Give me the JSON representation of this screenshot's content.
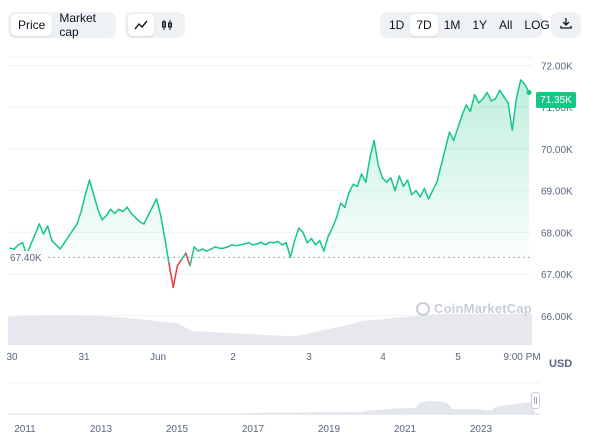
{
  "tabs": {
    "price": "Price",
    "market_cap": "Market cap"
  },
  "chart_style_icons": [
    "line-chart-icon",
    "candlestick-icon"
  ],
  "ranges": [
    "1D",
    "7D",
    "1M",
    "1Y",
    "All",
    "LOG"
  ],
  "active_range": "7D",
  "download_icon": "download-icon",
  "current_price_label": "71.35K",
  "reference_price_label": "67.40K",
  "currency_label": "USD",
  "watermark": "CoinMarketCap",
  "colors": {
    "up": "#16c784",
    "down": "#ea3943",
    "volume": "#e3e6eb",
    "grid": "#eff2f5",
    "axis_text": "#58667e"
  },
  "chart_data": {
    "type": "line",
    "title": "",
    "series": [
      {
        "values": [
          67.62,
          67.6,
          67.7,
          67.75,
          67.45,
          67.72,
          67.95,
          68.2,
          67.96,
          68.15,
          67.8,
          67.7,
          67.6,
          67.75,
          67.9,
          68.05,
          68.2,
          68.5,
          68.9,
          69.25,
          68.9,
          68.55,
          68.3,
          68.4,
          68.55,
          68.45,
          68.55,
          68.5,
          68.6,
          68.45,
          68.35,
          68.25,
          68.2,
          68.4,
          68.6,
          68.8,
          68.4,
          67.85,
          67.25,
          66.68,
          67.2,
          67.35,
          67.5,
          67.2,
          67.65,
          67.55,
          67.6,
          67.55,
          67.6,
          67.65,
          67.62,
          67.62,
          67.65,
          67.7,
          67.68,
          67.7,
          67.72,
          67.75,
          67.7,
          67.72,
          67.76,
          67.7,
          67.76,
          67.75,
          67.78,
          67.7,
          67.75,
          67.4,
          67.8,
          68.1,
          68.0,
          67.75,
          67.85,
          67.7,
          67.8,
          67.55,
          67.9,
          68.1,
          68.35,
          68.7,
          68.6,
          68.95,
          69.15,
          69.1,
          69.4,
          69.2,
          69.8,
          70.2,
          69.6,
          69.3,
          69.2,
          69.3,
          69.0,
          69.35,
          69.1,
          69.25,
          68.9,
          69.0,
          68.85,
          69.05,
          68.8,
          69.0,
          69.2,
          69.6,
          70.0,
          70.4,
          70.2,
          70.5,
          70.8,
          71.05,
          70.9,
          71.3,
          71.1,
          71.2,
          71.35,
          71.15,
          71.2,
          71.4,
          71.25,
          71.1,
          70.45,
          71.2,
          71.65,
          71.55,
          71.35
        ],
        "color": "#16c784"
      }
    ],
    "x_tick_labels": [
      "30",
      "31",
      "Jun",
      "2",
      "3",
      "4",
      "5",
      "9:00 PM"
    ],
    "y_tick_labels": [
      "66.00K",
      "67.00K",
      "68.00K",
      "69.00K",
      "70.00K",
      "71.00K",
      "72.00K"
    ],
    "y_ticks": [
      66000,
      67000,
      68000,
      69000,
      70000,
      71000,
      72000
    ],
    "ylim": [
      65.3,
      72.2
    ],
    "y_unit": "thousands USD",
    "reference_line": 67.4,
    "grid": true,
    "overview": {
      "x_tick_labels": [
        "2011",
        "2013",
        "2015",
        "2017",
        "2019",
        "2021",
        "2023"
      ]
    }
  }
}
